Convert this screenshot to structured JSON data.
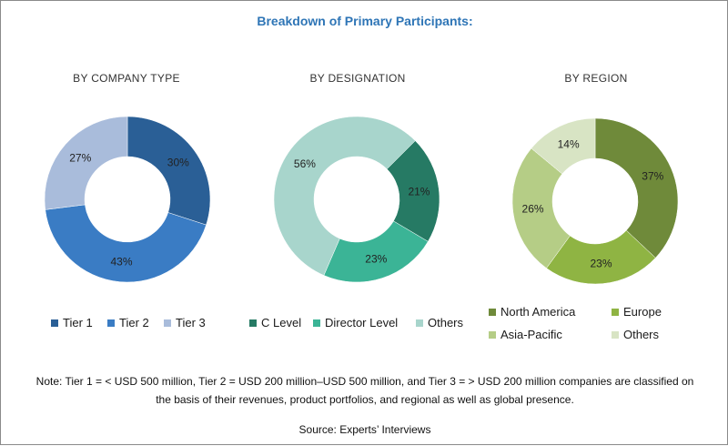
{
  "title": "Breakdown of Primary Participants:",
  "chart_data": [
    {
      "type": "pie",
      "subtitle": "BY COMPANY TYPE",
      "slices": [
        {
          "name": "Tier 1",
          "value": 30,
          "label": "30%",
          "color": "#2a5f96"
        },
        {
          "name": "Tier 2",
          "value": 43,
          "label": "43%",
          "color": "#3a7cc4"
        },
        {
          "name": "Tier 3",
          "value": 27,
          "label": "27%",
          "color": "#a9bcdb"
        }
      ]
    },
    {
      "type": "pie",
      "subtitle": "BY DESIGNATION",
      "slices": [
        {
          "name": "C Level",
          "value": 21,
          "label": "21%",
          "color": "#267a64"
        },
        {
          "name": "Director Level",
          "value": 23,
          "label": "23%",
          "color": "#3bb496"
        },
        {
          "name": "Others",
          "value": 56,
          "label": "56%",
          "color": "#a8d5cc"
        }
      ]
    },
    {
      "type": "pie",
      "subtitle": "BY REGION",
      "slices": [
        {
          "name": "North America",
          "value": 37,
          "label": "37%",
          "color": "#6f8a3a"
        },
        {
          "name": "Europe",
          "value": 23,
          "label": "23%",
          "color": "#8fb443"
        },
        {
          "name": "Asia-Pacific",
          "value": 26,
          "label": "26%",
          "color": "#b5cd86"
        },
        {
          "name": "Others",
          "value": 14,
          "label": "14%",
          "color": "#d8e4c4"
        }
      ]
    }
  ],
  "note": {
    "line1": "Note: Tier 1 = < USD 500 million, Tier 2 = USD 200 million–USD 500 million, and Tier 3 = > USD 200 million companies are classified on",
    "line2": "the basis of their revenues, product portfolios, and regional as well as global presence."
  },
  "source": "Source: Experts’ Interviews"
}
